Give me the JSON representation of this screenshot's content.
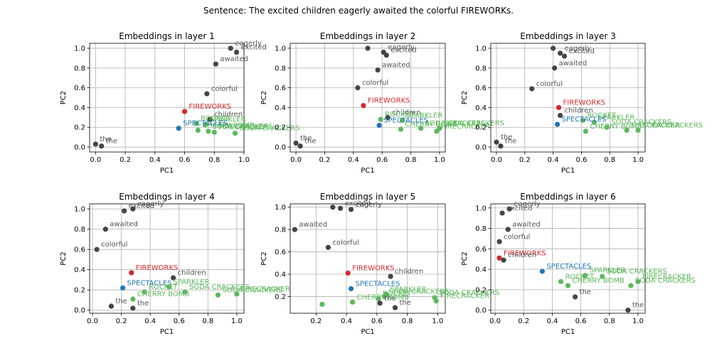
{
  "suptitle": "Sentence: The excited children eagerly awaited the colorful FIREWORKs.",
  "colors": {
    "context": "#444444",
    "target": "#d62728",
    "spectacles": "#1f77b4",
    "related": "#5cb85c",
    "grid": "#b0b0b0"
  },
  "chart_data": [
    {
      "type": "scatter",
      "title": "Embeddings in layer 1",
      "xlabel": "PC1",
      "ylabel": "PC2",
      "xlim": [
        -0.04,
        1.0
      ],
      "ylim": [
        -0.05,
        1.05
      ],
      "xticks": [
        "0.0",
        "0.2",
        "0.4",
        "0.6",
        "0.8",
        "1.0"
      ],
      "yticks": [
        "0.0",
        "0.2",
        "0.4",
        "0.6",
        "0.8",
        "1.0"
      ],
      "grid": true,
      "points": [
        {
          "label": "eagerly",
          "x": 0.91,
          "y": 1.0,
          "group": "context"
        },
        {
          "label": "excited",
          "x": 0.95,
          "y": 0.96,
          "group": "context"
        },
        {
          "label": "awaited",
          "x": 0.81,
          "y": 0.84,
          "group": "context"
        },
        {
          "label": "colorful",
          "x": 0.75,
          "y": 0.54,
          "group": "context"
        },
        {
          "label": "FIREWORKS",
          "x": 0.6,
          "y": 0.36,
          "group": "target"
        },
        {
          "label": "children",
          "x": 0.77,
          "y": 0.28,
          "group": "context"
        },
        {
          "label": "ROCKET",
          "x": 0.68,
          "y": 0.24,
          "group": "related"
        },
        {
          "label": "SPARKLER",
          "x": 0.74,
          "y": 0.23,
          "group": "related"
        },
        {
          "label": "SODA CRACKERS",
          "x": 0.76,
          "y": 0.16,
          "group": "related"
        },
        {
          "label": "CHERRY BOMB",
          "x": 0.69,
          "y": 0.17,
          "group": "related"
        },
        {
          "label": "FIRECRACKER",
          "x": 0.8,
          "y": 0.15,
          "group": "related"
        },
        {
          "label": "SODA CRACKERS",
          "x": 0.94,
          "y": 0.14,
          "group": "related"
        },
        {
          "label": "SPECTACLES",
          "x": 0.56,
          "y": 0.19,
          "group": "spectacles"
        },
        {
          "label": "the",
          "x": 0.0,
          "y": 0.03,
          "group": "context"
        },
        {
          "label": "the",
          "x": 0.04,
          "y": 0.01,
          "group": "context"
        }
      ]
    },
    {
      "type": "scatter",
      "title": "Embeddings in layer 2",
      "xlabel": "PC1",
      "ylabel": "PC2",
      "xlim": [
        -0.04,
        1.04
      ],
      "ylim": [
        -0.05,
        1.05
      ],
      "xticks": [
        "0.0",
        "0.2",
        "0.4",
        "0.6",
        "0.8",
        "1.0"
      ],
      "yticks": [
        "0.0",
        "0.2",
        "0.4",
        "0.6",
        "0.8",
        "1.0"
      ],
      "grid": true,
      "points": [
        {
          "label": "",
          "x": 0.5,
          "y": 1.0,
          "group": "context"
        },
        {
          "label": "eagerly",
          "x": 0.61,
          "y": 0.96,
          "group": "context"
        },
        {
          "label": "excited",
          "x": 0.63,
          "y": 0.93,
          "group": "context"
        },
        {
          "label": "awaited",
          "x": 0.57,
          "y": 0.78,
          "group": "context"
        },
        {
          "label": "colorful",
          "x": 0.43,
          "y": 0.6,
          "group": "context"
        },
        {
          "label": "FIREWORKS",
          "x": 0.47,
          "y": 0.42,
          "group": "target"
        },
        {
          "label": "children",
          "x": 0.64,
          "y": 0.3,
          "group": "context"
        },
        {
          "label": "ROCKET",
          "x": 0.59,
          "y": 0.28,
          "group": "related"
        },
        {
          "label": "SPARKLER",
          "x": 0.74,
          "y": 0.27,
          "group": "related"
        },
        {
          "label": "CHERRY BOMB",
          "x": 0.73,
          "y": 0.18,
          "group": "related"
        },
        {
          "label": "SODA CRACKERS",
          "x": 0.87,
          "y": 0.19,
          "group": "related"
        },
        {
          "label": "FIRECRACKER",
          "x": 0.98,
          "y": 0.16,
          "group": "related"
        },
        {
          "label": "SODA CRACKERS",
          "x": 1.0,
          "y": 0.19,
          "group": "related"
        },
        {
          "label": "SPECTACLES",
          "x": 0.58,
          "y": 0.22,
          "group": "spectacles"
        },
        {
          "label": "the",
          "x": 0.0,
          "y": 0.04,
          "group": "context"
        },
        {
          "label": "the",
          "x": 0.03,
          "y": 0.01,
          "group": "context"
        }
      ]
    },
    {
      "type": "scatter",
      "title": "Embeddings in layer 3",
      "xlabel": "PC1",
      "ylabel": "PC2",
      "xlim": [
        -0.04,
        1.05
      ],
      "ylim": [
        -0.05,
        1.05
      ],
      "xticks": [
        "0.0",
        "0.2",
        "0.4",
        "0.6",
        "0.8",
        "1.0"
      ],
      "yticks": [
        "0.0",
        "0.2",
        "0.4",
        "0.6",
        "0.8",
        "1.0"
      ],
      "grid": true,
      "points": [
        {
          "label": "",
          "x": 0.4,
          "y": 1.0,
          "group": "context"
        },
        {
          "label": "eagerly",
          "x": 0.45,
          "y": 0.95,
          "group": "context"
        },
        {
          "label": "excited",
          "x": 0.48,
          "y": 0.92,
          "group": "context"
        },
        {
          "label": "awaited",
          "x": 0.41,
          "y": 0.8,
          "group": "context"
        },
        {
          "label": "colorful",
          "x": 0.25,
          "y": 0.59,
          "group": "context"
        },
        {
          "label": "FIREWORKS",
          "x": 0.44,
          "y": 0.4,
          "group": "target"
        },
        {
          "label": "children",
          "x": 0.45,
          "y": 0.32,
          "group": "context"
        },
        {
          "label": "ROCKET",
          "x": 0.61,
          "y": 0.27,
          "group": "related"
        },
        {
          "label": "SPARKLER",
          "x": 0.69,
          "y": 0.25,
          "group": "related"
        },
        {
          "label": "CHERRY BOMB",
          "x": 0.63,
          "y": 0.16,
          "group": "related"
        },
        {
          "label": "SODA CRACKERS",
          "x": 0.78,
          "y": 0.2,
          "group": "related"
        },
        {
          "label": "FIRECRACKER",
          "x": 0.92,
          "y": 0.17,
          "group": "related"
        },
        {
          "label": "SODA CRACKERS",
          "x": 1.0,
          "y": 0.17,
          "group": "related"
        },
        {
          "label": "SPECTACLES",
          "x": 0.43,
          "y": 0.23,
          "group": "spectacles"
        },
        {
          "label": "the",
          "x": 0.0,
          "y": 0.05,
          "group": "context"
        },
        {
          "label": "the",
          "x": 0.03,
          "y": 0.01,
          "group": "context"
        }
      ]
    },
    {
      "type": "scatter",
      "title": "Embeddings in layer 4",
      "xlabel": "PC1",
      "ylabel": "PC2",
      "xlim": [
        -0.02,
        1.05
      ],
      "ylim": [
        -0.03,
        1.05
      ],
      "xticks": [
        "0.0",
        "0.2",
        "0.4",
        "0.6",
        "0.8",
        "1.0"
      ],
      "yticks": [
        "0.0",
        "0.2",
        "0.4",
        "0.6",
        "0.8",
        "1.0"
      ],
      "grid": true,
      "points": [
        {
          "label": "excited",
          "x": 0.22,
          "y": 0.98,
          "group": "context"
        },
        {
          "label": "eagerly",
          "x": 0.28,
          "y": 1.0,
          "group": "context"
        },
        {
          "label": "awaited",
          "x": 0.09,
          "y": 0.8,
          "group": "context"
        },
        {
          "label": "colorful",
          "x": 0.03,
          "y": 0.6,
          "group": "context"
        },
        {
          "label": "FIREWORKS",
          "x": 0.27,
          "y": 0.37,
          "group": "target"
        },
        {
          "label": "children",
          "x": 0.56,
          "y": 0.32,
          "group": "context"
        },
        {
          "label": "SPECTACLES",
          "x": 0.21,
          "y": 0.22,
          "group": "spectacles"
        },
        {
          "label": "ROCKET",
          "x": 0.36,
          "y": 0.18,
          "group": "related"
        },
        {
          "label": "SPARKLER",
          "x": 0.53,
          "y": 0.23,
          "group": "related"
        },
        {
          "label": "CHERRY BOMB",
          "x": 0.28,
          "y": 0.11,
          "group": "related"
        },
        {
          "label": "SODA CRACKERS",
          "x": 0.64,
          "y": 0.18,
          "group": "related"
        },
        {
          "label": "SODA CRACKERS",
          "x": 0.87,
          "y": 0.15,
          "group": "related"
        },
        {
          "label": "FIRECRACKER",
          "x": 1.0,
          "y": 0.16,
          "group": "related"
        },
        {
          "label": "the",
          "x": 0.13,
          "y": 0.04,
          "group": "context"
        },
        {
          "label": "the",
          "x": 0.28,
          "y": 0.02,
          "group": "context"
        }
      ]
    },
    {
      "type": "scatter",
      "title": "Embeddings in layer 5",
      "xlabel": "PC1",
      "ylabel": "PC2",
      "xlim": [
        0.03,
        1.05
      ],
      "ylim": [
        0.05,
        1.03
      ],
      "xticks": [
        "0.2",
        "0.4",
        "0.6",
        "0.8",
        "1.0"
      ],
      "yticks": [
        "0.2",
        "0.4",
        "0.6",
        "0.8",
        "1.0"
      ],
      "grid": true,
      "points": [
        {
          "label": "",
          "x": 0.31,
          "y": 1.0,
          "group": "context"
        },
        {
          "label": "excited",
          "x": 0.36,
          "y": 0.99,
          "group": "context"
        },
        {
          "label": "eagerly",
          "x": 0.43,
          "y": 0.98,
          "group": "context"
        },
        {
          "label": "awaited",
          "x": 0.06,
          "y": 0.8,
          "group": "context"
        },
        {
          "label": "colorful",
          "x": 0.28,
          "y": 0.64,
          "group": "context"
        },
        {
          "label": "FIREWORKS",
          "x": 0.41,
          "y": 0.41,
          "group": "target"
        },
        {
          "label": "children",
          "x": 0.69,
          "y": 0.38,
          "group": "context"
        },
        {
          "label": "SPECTACLES",
          "x": 0.43,
          "y": 0.27,
          "group": "spectacles"
        },
        {
          "label": "ROCKET",
          "x": 0.61,
          "y": 0.18,
          "group": "related"
        },
        {
          "label": "SPARKLER",
          "x": 0.66,
          "y": 0.22,
          "group": "related"
        },
        {
          "label": "SODA CRACKERS",
          "x": 0.65,
          "y": 0.2,
          "group": "related"
        },
        {
          "label": "CHERRY BOMB",
          "x": 0.44,
          "y": 0.15,
          "group": "related"
        },
        {
          "label": "SODA CRACKERS",
          "x": 0.98,
          "y": 0.19,
          "group": "related"
        },
        {
          "label": "FIRECRACKER",
          "x": 0.99,
          "y": 0.16,
          "group": "related"
        },
        {
          "label": "",
          "x": 0.24,
          "y": 0.13,
          "group": "related"
        },
        {
          "label": "the",
          "x": 0.62,
          "y": 0.14,
          "group": "context"
        },
        {
          "label": "the",
          "x": 0.72,
          "y": 0.1,
          "group": "context"
        }
      ]
    },
    {
      "type": "scatter",
      "title": "Embeddings in layer 6",
      "xlabel": "PC1",
      "ylabel": "PC2",
      "xlim": [
        -0.03,
        1.05
      ],
      "ylim": [
        -0.03,
        1.04
      ],
      "xticks": [
        "0.0",
        "0.2",
        "0.4",
        "0.6",
        "0.8",
        "1.0"
      ],
      "yticks": [
        "0.0",
        "0.2",
        "0.4",
        "0.6",
        "0.8",
        "1.0"
      ],
      "grid": true,
      "points": [
        {
          "label": "eagerly",
          "x": 0.1,
          "y": 0.99,
          "group": "context"
        },
        {
          "label": "excited",
          "x": 0.05,
          "y": 0.95,
          "group": "context"
        },
        {
          "label": "awaited",
          "x": 0.09,
          "y": 0.79,
          "group": "context"
        },
        {
          "label": "colorful",
          "x": 0.03,
          "y": 0.67,
          "group": "context"
        },
        {
          "label": "FIREWORKS",
          "x": 0.03,
          "y": 0.51,
          "group": "target"
        },
        {
          "label": "children",
          "x": 0.06,
          "y": 0.49,
          "group": "context"
        },
        {
          "label": "SPECTACLES",
          "x": 0.33,
          "y": 0.38,
          "group": "spectacles"
        },
        {
          "label": "ROCKET",
          "x": 0.46,
          "y": 0.28,
          "group": "related"
        },
        {
          "label": "CHERRY BOMB",
          "x": 0.51,
          "y": 0.24,
          "group": "related"
        },
        {
          "label": "SPARKLER",
          "x": 0.63,
          "y": 0.34,
          "group": "related"
        },
        {
          "label": "SODA CRACKERS",
          "x": 0.75,
          "y": 0.33,
          "group": "related"
        },
        {
          "label": "SODA CRACKERS",
          "x": 0.95,
          "y": 0.24,
          "group": "related"
        },
        {
          "label": "FIRECRACKER",
          "x": 1.0,
          "y": 0.28,
          "group": "related"
        },
        {
          "label": "the",
          "x": 0.56,
          "y": 0.13,
          "group": "context"
        },
        {
          "label": "the",
          "x": 0.93,
          "y": 0.0,
          "group": "context"
        }
      ]
    }
  ]
}
